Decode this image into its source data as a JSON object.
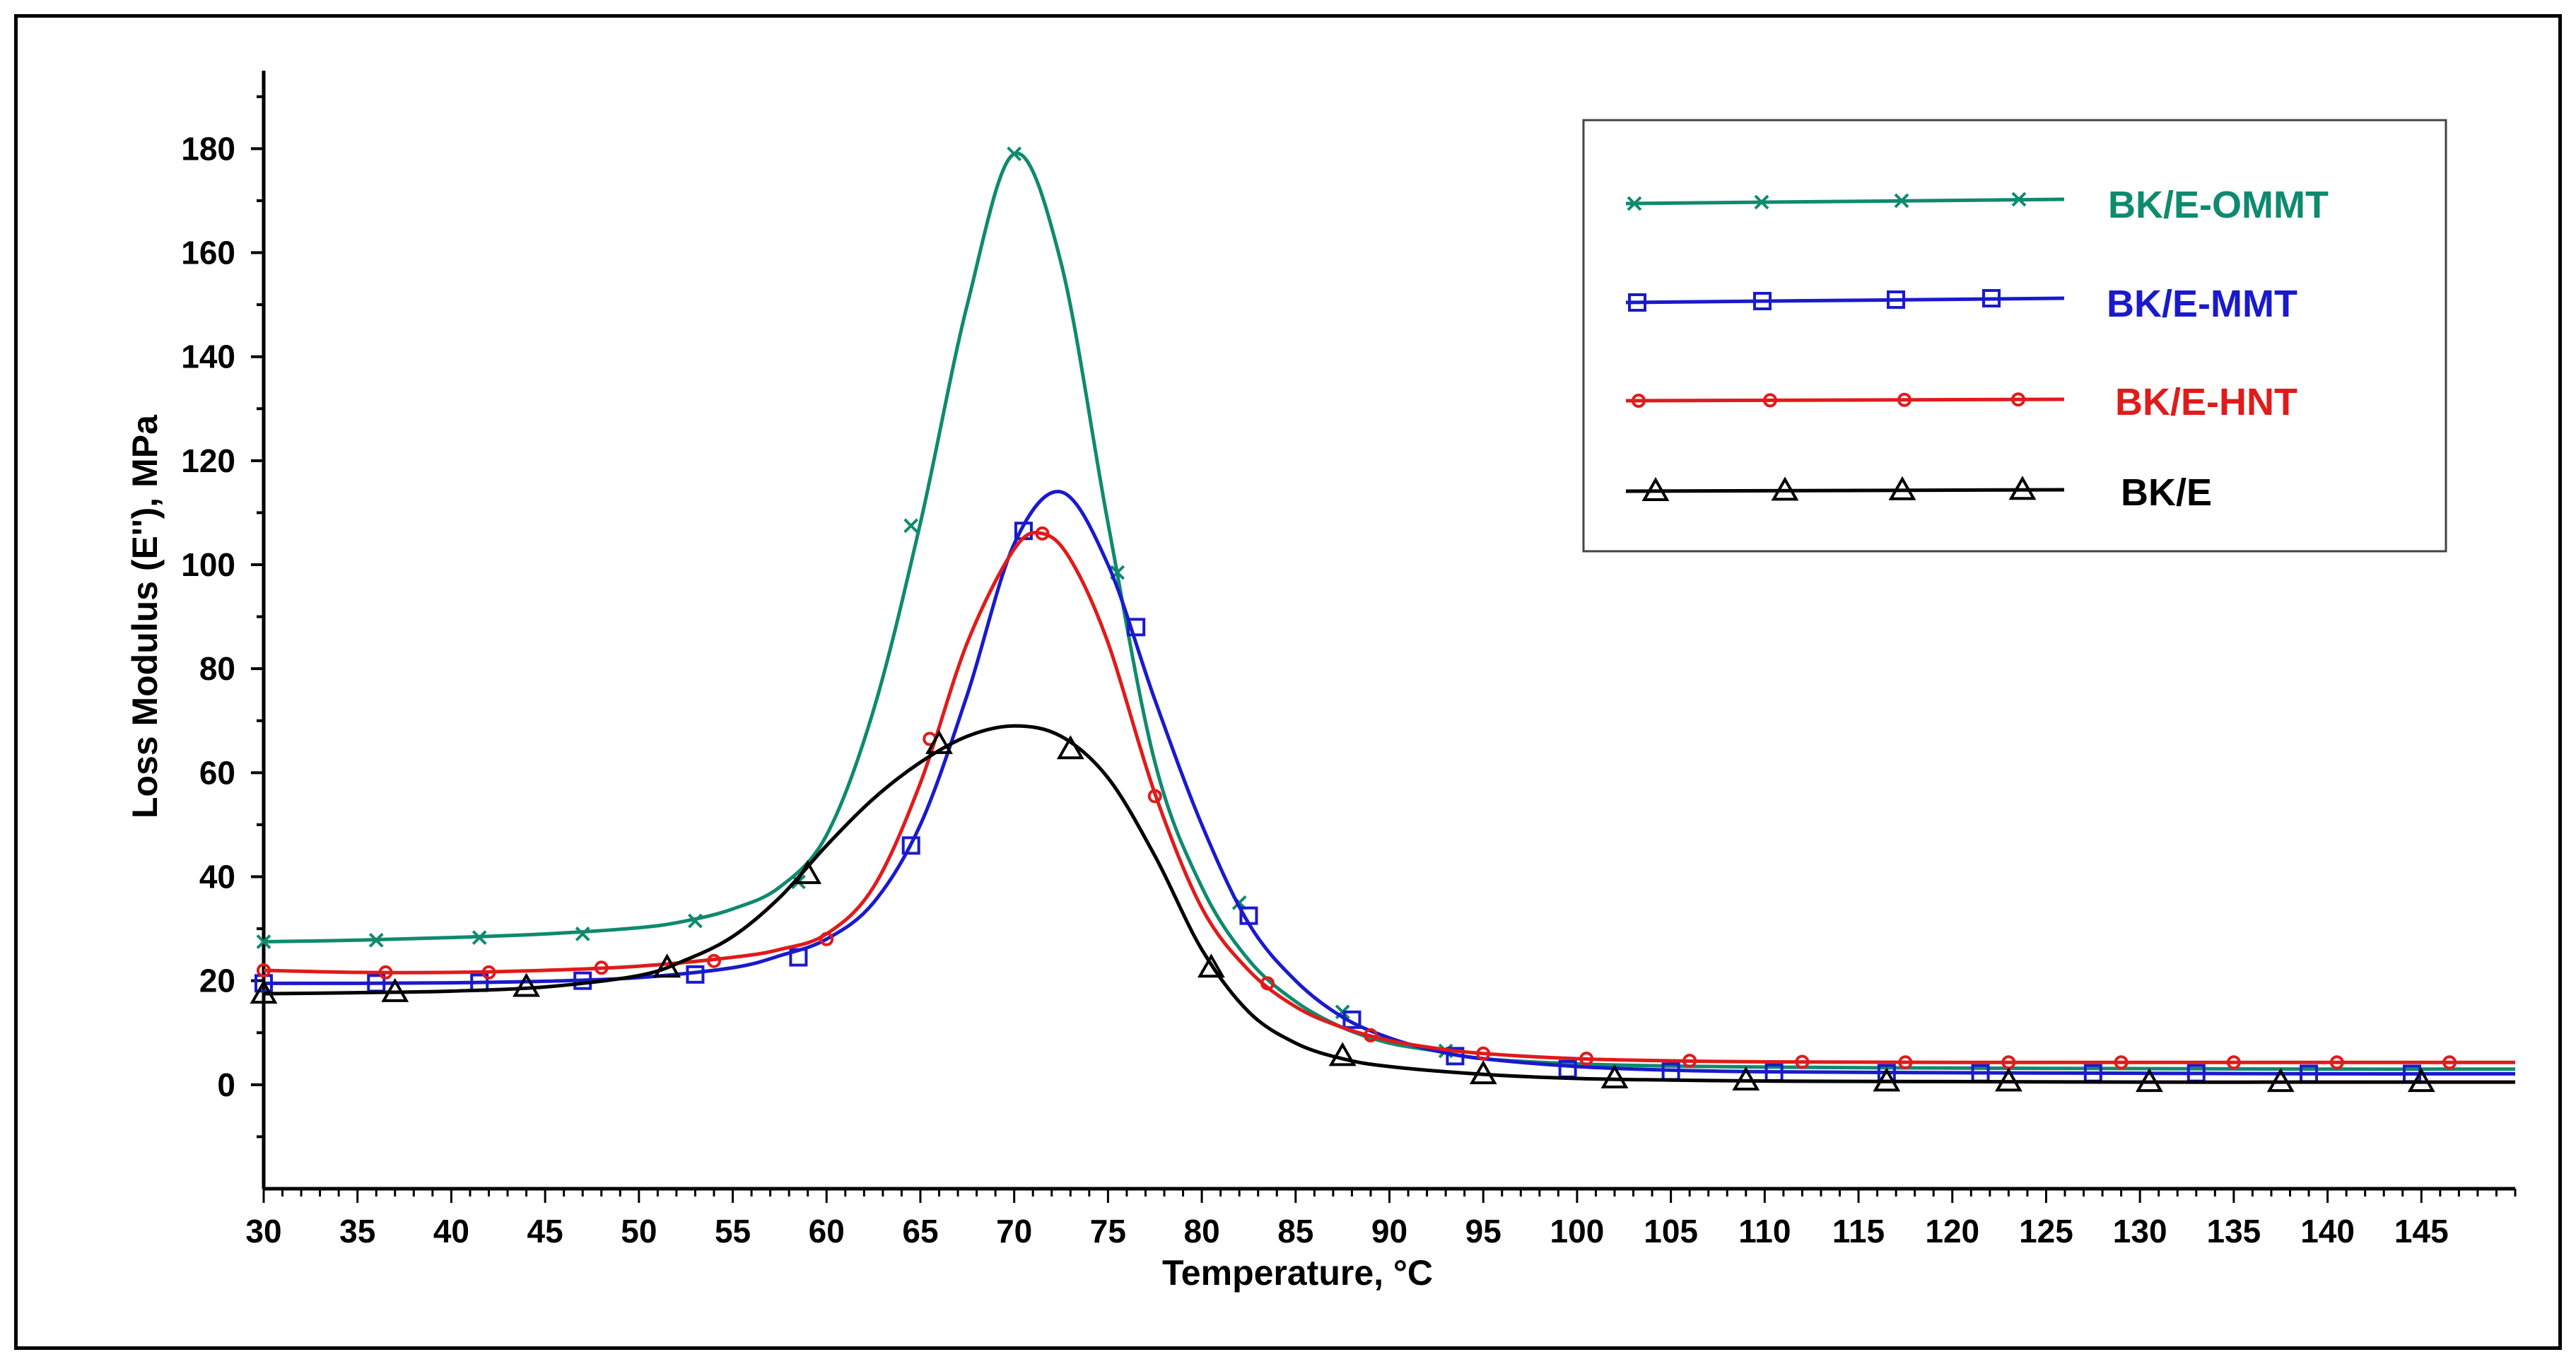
{
  "chart_data": {
    "type": "line",
    "title": "",
    "xlabel": "Temperature,  °C",
    "ylabel": "Loss Modulus (E''), MPa",
    "xlim": [
      30,
      150
    ],
    "ylim": [
      -20,
      195
    ],
    "xticks": [
      30,
      35,
      40,
      45,
      50,
      55,
      60,
      65,
      70,
      75,
      80,
      85,
      90,
      95,
      100,
      105,
      110,
      115,
      120,
      125,
      130,
      135,
      140,
      145
    ],
    "yticks": [
      0,
      20,
      40,
      60,
      80,
      100,
      120,
      140,
      160,
      180
    ],
    "legend_position": "top-right",
    "series": [
      {
        "name": "BK/E-OMMT",
        "color": "#0f8a6e",
        "marker": "x",
        "x": [
          30,
          35,
          40,
          45,
          50,
          52.5,
          55,
          57.5,
          60,
          62.5,
          65,
          67.5,
          70,
          72.5,
          75,
          77.5,
          80,
          82.5,
          85,
          87.5,
          90,
          92.5,
          95,
          100,
          105,
          110,
          120,
          130,
          140,
          150
        ],
        "y": [
          27.5,
          27.8,
          28.3,
          29,
          30.2,
          31.5,
          33.8,
          38,
          48,
          72,
          108,
          150,
          179,
          158,
          108,
          62,
          38,
          24,
          16,
          11,
          8,
          6.5,
          5,
          4,
          3.6,
          3.4,
          3.2,
          3.1,
          3.0,
          3.0
        ],
        "markers_x": [
          30,
          36,
          41.5,
          47,
          53,
          58.5,
          64.5,
          70,
          75.5,
          82,
          87.5,
          93
        ],
        "markers_y": [
          27.5,
          27.8,
          28.3,
          29,
          31.5,
          39,
          107.5,
          179,
          98.5,
          35,
          14,
          6.5
        ]
      },
      {
        "name": "BK/E-MMT",
        "color": "#1a1acc",
        "marker": "square",
        "x": [
          30,
          35,
          40,
          45,
          50,
          55,
          57.5,
          60,
          62.5,
          65,
          67.5,
          70,
          72.5,
          75,
          77.5,
          80,
          82.5,
          85,
          87.5,
          90,
          92.5,
          95,
          100,
          105,
          110,
          120,
          130,
          140,
          150
        ],
        "y": [
          19.5,
          19.5,
          19.6,
          19.9,
          20.6,
          22.5,
          24.8,
          28,
          35,
          50,
          75,
          104,
          114,
          100,
          74,
          50,
          31,
          20,
          13,
          9,
          6.5,
          5,
          3.5,
          2.8,
          2.5,
          2.3,
          2.2,
          2.1,
          2.1
        ],
        "markers_x": [
          30,
          36,
          41.5,
          47,
          53,
          58.5,
          64.5,
          70.5,
          76.5,
          82.5,
          88,
          93.5,
          99.5,
          105,
          110.5,
          116.5,
          121.5,
          127.5,
          133,
          139,
          144.5
        ],
        "markers_y": [
          19.5,
          19.5,
          19.6,
          20,
          21.2,
          24.5,
          46,
          106.5,
          88,
          32.5,
          12.5,
          5.5,
          3,
          2.5,
          2.3,
          2.2,
          2.2,
          2.2,
          2.2,
          2.1,
          2.1
        ]
      },
      {
        "name": "BK/E-HNT",
        "color": "#e01b1b",
        "marker": "circle",
        "x": [
          30,
          35,
          40,
          45,
          50,
          55,
          57.5,
          60,
          62.5,
          65,
          67.5,
          70,
          71.5,
          73,
          75,
          77.5,
          80,
          82.5,
          85,
          87.5,
          90,
          92.5,
          95,
          100,
          105,
          110,
          120,
          130,
          140,
          150
        ],
        "y": [
          22,
          21.6,
          21.6,
          22,
          22.8,
          24.5,
          26,
          29,
          38,
          58,
          85,
          103,
          106,
          101,
          85,
          56,
          34,
          22,
          15,
          11,
          8.5,
          7,
          6,
          5,
          4.6,
          4.4,
          4.3,
          4.3,
          4.3,
          4.3
        ],
        "markers_x": [
          30,
          36.5,
          42,
          48,
          54,
          60,
          65.5,
          71.5,
          77.5,
          83.5,
          89,
          95,
          100.5,
          106,
          112,
          117.5,
          123,
          129,
          135,
          140.5,
          146.5
        ],
        "markers_y": [
          22,
          21.6,
          21.6,
          22.5,
          23.8,
          28,
          66.5,
          106,
          55.5,
          19.5,
          9.5,
          6,
          5,
          4.6,
          4.4,
          4.3,
          4.3,
          4.3,
          4.3,
          4.3,
          4.3
        ]
      },
      {
        "name": "BK/E",
        "color": "#000000",
        "marker": "triangle",
        "x": [
          30,
          35,
          40,
          45,
          50,
          52.5,
          55,
          57.5,
          60,
          62.5,
          65,
          67.5,
          70,
          72.5,
          75,
          77.5,
          80,
          82.5,
          85,
          87.5,
          90,
          95,
          100,
          105,
          110,
          120,
          130,
          140,
          150
        ],
        "y": [
          17.5,
          17.7,
          18,
          18.8,
          21,
          24,
          28.5,
          36,
          46,
          55,
          62,
          67,
          69,
          67,
          59,
          44,
          26,
          14,
          8,
          5,
          3.5,
          2,
          1.2,
          0.9,
          0.7,
          0.6,
          0.5,
          0.5,
          0.5
        ],
        "markers_x": [
          30,
          37,
          44,
          51.5,
          59,
          66,
          73,
          80.5,
          87.5,
          95,
          102,
          109,
          116.5,
          123,
          130.5,
          137.5,
          145
        ],
        "markers_y": [
          17.5,
          17.8,
          18.8,
          22.5,
          40.5,
          65.5,
          64.5,
          22.5,
          5.5,
          2,
          1.2,
          0.8,
          0.6,
          0.6,
          0.5,
          0.5,
          0.5
        ]
      }
    ]
  }
}
